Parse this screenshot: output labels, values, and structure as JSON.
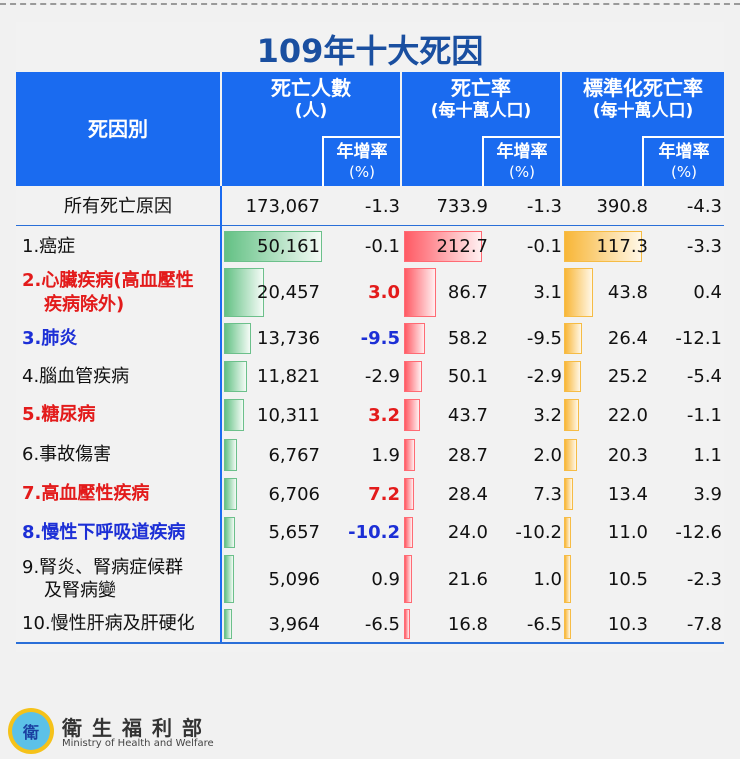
{
  "title": "109年十大死因",
  "header": {
    "cause": "死因別",
    "deaths": {
      "line1": "死亡人數",
      "line2": "(人)",
      "growth_line1": "年增率",
      "growth_line2": "(%)"
    },
    "rate": {
      "line1": "死亡率",
      "line2": "(每十萬人口)",
      "growth_line1": "年增率",
      "growth_line2": "(%)"
    },
    "std_rate": {
      "line1": "標準化死亡率",
      "line2": "(每十萬人口)",
      "growth_line1": "年增率",
      "growth_line2": "(%)"
    }
  },
  "total": {
    "name": "所有死亡原因",
    "deaths": "173,067",
    "deaths_growth": "-1.3",
    "rate": "733.9",
    "rate_growth": "-1.3",
    "std_rate": "390.8",
    "std_growth": "-4.3"
  },
  "rows": [
    {
      "name": "1.癌症",
      "name2": "",
      "color": "black",
      "deaths": "50,161",
      "deaths_growth": "-0.1",
      "growth_style": "normal",
      "rate": "212.7",
      "rate_growth": "-0.1",
      "std_rate": "117.3",
      "std_growth": "-3.3"
    },
    {
      "name": "2.心臟疾病(高血壓性",
      "name2": "疾病除外)",
      "color": "red",
      "deaths": "20,457",
      "deaths_growth": "3.0",
      "growth_style": "red",
      "rate": "86.7",
      "rate_growth": "3.1",
      "std_rate": "43.8",
      "std_growth": "0.4"
    },
    {
      "name": "3.肺炎",
      "name2": "",
      "color": "blue",
      "deaths": "13,736",
      "deaths_growth": "-9.5",
      "growth_style": "blue",
      "rate": "58.2",
      "rate_growth": "-9.5",
      "std_rate": "26.4",
      "std_growth": "-12.1"
    },
    {
      "name": "4.腦血管疾病",
      "name2": "",
      "color": "black",
      "deaths": "11,821",
      "deaths_growth": "-2.9",
      "growth_style": "normal",
      "rate": "50.1",
      "rate_growth": "-2.9",
      "std_rate": "25.2",
      "std_growth": "-5.4"
    },
    {
      "name": "5.糖尿病",
      "name2": "",
      "color": "red",
      "deaths": "10,311",
      "deaths_growth": "3.2",
      "growth_style": "red",
      "rate": "43.7",
      "rate_growth": "3.2",
      "std_rate": "22.0",
      "std_growth": "-1.1"
    },
    {
      "name": "6.事故傷害",
      "name2": "",
      "color": "black",
      "deaths": "6,767",
      "deaths_growth": "1.9",
      "growth_style": "normal",
      "rate": "28.7",
      "rate_growth": "2.0",
      "std_rate": "20.3",
      "std_growth": "1.1"
    },
    {
      "name": "7.高血壓性疾病",
      "name2": "",
      "color": "red",
      "deaths": "6,706",
      "deaths_growth": "7.2",
      "growth_style": "red",
      "rate": "28.4",
      "rate_growth": "7.3",
      "std_rate": "13.4",
      "std_growth": "3.9"
    },
    {
      "name": "8.慢性下呼吸道疾病",
      "name2": "",
      "color": "blue",
      "deaths": "5,657",
      "deaths_growth": "-10.2",
      "growth_style": "blue",
      "rate": "24.0",
      "rate_growth": "-10.2",
      "std_rate": "11.0",
      "std_growth": "-12.6"
    },
    {
      "name": "9.腎炎、腎病症候群",
      "name2": "及腎病變",
      "color": "black",
      "deaths": "5,096",
      "deaths_growth": "0.9",
      "growth_style": "normal",
      "rate": "21.6",
      "rate_growth": "1.0",
      "std_rate": "10.5",
      "std_growth": "-2.3"
    },
    {
      "name": "10.慢性肝病及肝硬化",
      "name2": "",
      "color": "black",
      "deaths": "3,964",
      "deaths_growth": "-6.5",
      "growth_style": "normal",
      "rate": "16.8",
      "rate_growth": "-6.5",
      "std_rate": "10.3",
      "std_growth": "-7.8"
    }
  ],
  "colors": {
    "header_blue": "#1a6bf0",
    "title_blue": "#1a4fa0",
    "increase_red": "#e31b1b",
    "decrease_blue": "#1c2fd6",
    "bar_green": "#63c184",
    "bar_red": "#ff5a64",
    "bar_orange": "#f8b637"
  },
  "footer": {
    "org_zh": "衛生福利部",
    "org_en": "Ministry of Health and Welfare",
    "logo_glyph": "衛"
  }
}
